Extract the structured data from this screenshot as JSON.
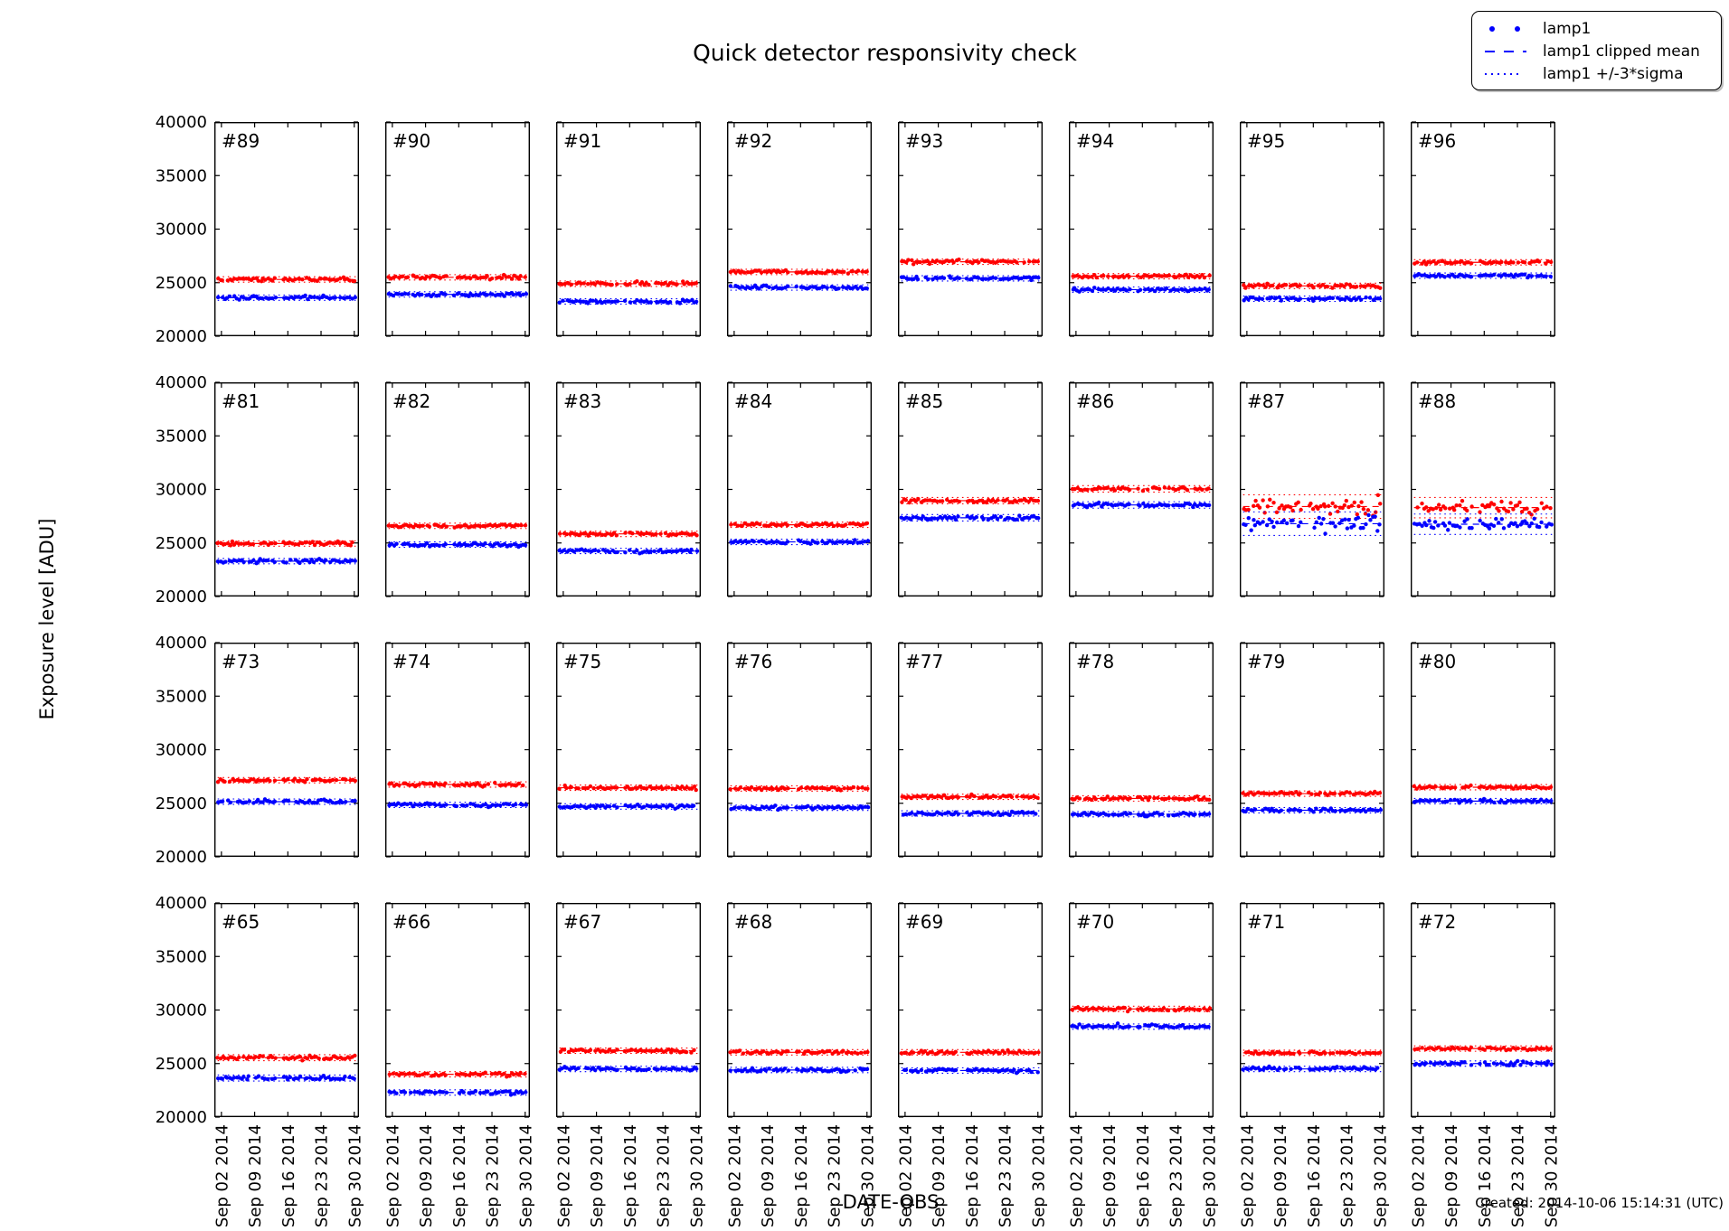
{
  "figure": {
    "title": "Quick detector responsivity check",
    "xlabel": "DATE-OBS",
    "ylabel": "Exposure level [ADU]",
    "created_note": "Created: 2014-10-06 15:14:31 (UTC)"
  },
  "legend": {
    "items": [
      {
        "label": "lamp1",
        "marker": "dots",
        "color": "#0000ff"
      },
      {
        "label": "lamp1 clipped mean",
        "marker": "dashed-line",
        "color": "#0000ff"
      },
      {
        "label": "lamp1 +/-3*sigma",
        "marker": "dotted-line",
        "color": "#0000ff"
      }
    ]
  },
  "chart_data": {
    "type": "scatter",
    "title": "Quick detector responsivity check",
    "xlabel": "DATE-OBS",
    "ylabel": "Exposure level [ADU]",
    "grid": {
      "rows": 4,
      "cols": 8
    },
    "ylim": [
      20000,
      40000
    ],
    "y_ticks": [
      20000,
      25000,
      30000,
      35000,
      40000
    ],
    "x_tick_labels": [
      "Sep 02 2014",
      "Sep 09 2014",
      "Sep 16 2014",
      "Sep 23 2014",
      "Sep 30 2014"
    ],
    "x_tick_days": [
      1.5,
      8.5,
      15.5,
      22.5,
      29.5
    ],
    "x_range_days": [
      0,
      30.5
    ],
    "point_color_blue": "#0000ff",
    "point_color_red": "#ff0000",
    "panels": [
      {
        "id": "#89",
        "red_mean": 25300,
        "blue_mean": 23600,
        "spread_3sigma": 250
      },
      {
        "id": "#90",
        "red_mean": 25500,
        "blue_mean": 23900,
        "spread_3sigma": 250
      },
      {
        "id": "#91",
        "red_mean": 24900,
        "blue_mean": 23250,
        "spread_3sigma": 250
      },
      {
        "id": "#92",
        "red_mean": 26000,
        "blue_mean": 24550,
        "spread_3sigma": 250
      },
      {
        "id": "#93",
        "red_mean": 26950,
        "blue_mean": 25400,
        "spread_3sigma": 250
      },
      {
        "id": "#94",
        "red_mean": 25600,
        "blue_mean": 24350,
        "spread_3sigma": 250
      },
      {
        "id": "#95",
        "red_mean": 24700,
        "blue_mean": 23500,
        "spread_3sigma": 250
      },
      {
        "id": "#96",
        "red_mean": 26900,
        "blue_mean": 25650,
        "spread_3sigma": 250
      },
      {
        "id": "#81",
        "red_mean": 24950,
        "blue_mean": 23300,
        "spread_3sigma": 250
      },
      {
        "id": "#82",
        "red_mean": 26600,
        "blue_mean": 24850,
        "spread_3sigma": 250
      },
      {
        "id": "#83",
        "red_mean": 25850,
        "blue_mean": 24250,
        "spread_3sigma": 250
      },
      {
        "id": "#84",
        "red_mean": 26700,
        "blue_mean": 25100,
        "spread_3sigma": 250
      },
      {
        "id": "#85",
        "red_mean": 28950,
        "blue_mean": 27350,
        "spread_3sigma": 300
      },
      {
        "id": "#86",
        "red_mean": 30050,
        "blue_mean": 28550,
        "spread_3sigma": 300
      },
      {
        "id": "#87",
        "red_mean": 28400,
        "blue_mean": 26800,
        "spread_3sigma": 1100
      },
      {
        "id": "#88",
        "red_mean": 28300,
        "blue_mean": 26750,
        "spread_3sigma": 950
      },
      {
        "id": "#73",
        "red_mean": 27150,
        "blue_mean": 25150,
        "spread_3sigma": 250
      },
      {
        "id": "#74",
        "red_mean": 26750,
        "blue_mean": 24850,
        "spread_3sigma": 250
      },
      {
        "id": "#75",
        "red_mean": 26450,
        "blue_mean": 24700,
        "spread_3sigma": 250
      },
      {
        "id": "#76",
        "red_mean": 26380,
        "blue_mean": 24580,
        "spread_3sigma": 250
      },
      {
        "id": "#77",
        "red_mean": 25600,
        "blue_mean": 24050,
        "spread_3sigma": 250
      },
      {
        "id": "#78",
        "red_mean": 25450,
        "blue_mean": 23980,
        "spread_3sigma": 250
      },
      {
        "id": "#79",
        "red_mean": 25900,
        "blue_mean": 24350,
        "spread_3sigma": 250
      },
      {
        "id": "#80",
        "red_mean": 26500,
        "blue_mean": 25200,
        "spread_3sigma": 250
      },
      {
        "id": "#65",
        "red_mean": 25550,
        "blue_mean": 23650,
        "spread_3sigma": 280
      },
      {
        "id": "#66",
        "red_mean": 24000,
        "blue_mean": 22300,
        "spread_3sigma": 250
      },
      {
        "id": "#67",
        "red_mean": 26200,
        "blue_mean": 24500,
        "spread_3sigma": 250
      },
      {
        "id": "#68",
        "red_mean": 26050,
        "blue_mean": 24400,
        "spread_3sigma": 250
      },
      {
        "id": "#69",
        "red_mean": 26050,
        "blue_mean": 24350,
        "spread_3sigma": 250
      },
      {
        "id": "#70",
        "red_mean": 30100,
        "blue_mean": 28450,
        "spread_3sigma": 250
      },
      {
        "id": "#71",
        "red_mean": 26000,
        "blue_mean": 24500,
        "spread_3sigma": 250
      },
      {
        "id": "#72",
        "red_mean": 26400,
        "blue_mean": 25000,
        "spread_3sigma": 250
      }
    ]
  }
}
